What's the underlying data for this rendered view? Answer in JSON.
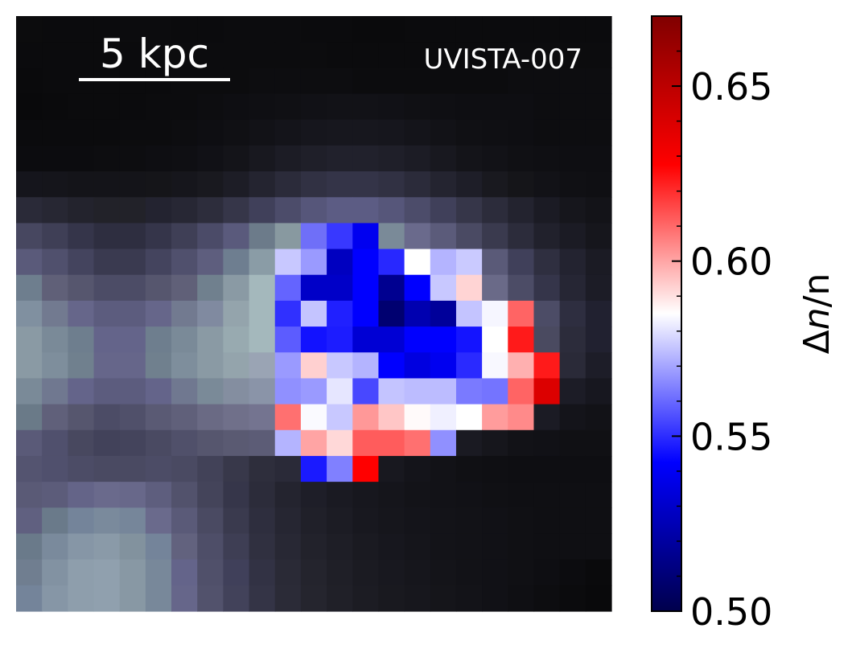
{
  "chart_data": {
    "type": "heatmap",
    "title": "",
    "object_id": "UVISTA-007",
    "scale_bar": {
      "label": "5 kpc"
    },
    "colorbar": {
      "label_symbol": "Δ",
      "label_var": "n",
      "label_den": "/n",
      "colormap": "seismic",
      "vmin": 0.5,
      "vmax": 0.67,
      "ticks": [
        {
          "value": 0.5,
          "label": "0.50"
        },
        {
          "value": 0.55,
          "label": "0.55"
        },
        {
          "value": 0.6,
          "label": "0.60"
        },
        {
          "value": 0.65,
          "label": "0.65"
        }
      ],
      "minor_step": 0.01
    },
    "background_grid": {
      "description_colors": "grayscale-blue stellar image",
      "rows": [
        [
          "#0c0c0d",
          "#0b0b0d",
          "#0b0b0d",
          "#0b0b0d",
          "#0c0c0e",
          "#0c0c0e",
          "#0b0b0d",
          "#0b0b0d",
          "#0c0c0e",
          "#0c0c0e",
          "#0c0c0e",
          "#0b0b0d",
          "#0b0b0d",
          "#0a0a0c",
          "#0a0a0c",
          "#0b0b0d",
          "#0b0b0d",
          "#0b0b0d",
          "#0b0b0d",
          "#0b0b0d",
          "#0b0b0d",
          "#0b0b0d",
          "#0b0b0d"
        ],
        [
          "#0b0b0d",
          "#0b0b0d",
          "#0b0b0d",
          "#0b0b0d",
          "#0b0b0d",
          "#0c0c0e",
          "#0c0c0e",
          "#0c0c0e",
          "#0c0c0e",
          "#0c0c0e",
          "#0c0c0e",
          "#0c0c0e",
          "#0b0b0d",
          "#0b0b0d",
          "#0b0b0d",
          "#0b0b0d",
          "#0b0b0d",
          "#0b0b0d",
          "#0b0b0d",
          "#0c0c0e",
          "#0c0c0e",
          "#0c0c0e",
          "#0c0c0e"
        ],
        [
          "#0a0a0c",
          "#0b0b0d",
          "#0b0b0d",
          "#0b0b0d",
          "#0b0b0d",
          "#0b0b0d",
          "#0c0c0e",
          "#0c0c0e",
          "#0c0c0e",
          "#0d0d10",
          "#0d0d10",
          "#0d0d10",
          "#0d0d10",
          "#0c0c0e",
          "#0c0c0e",
          "#0c0c0e",
          "#0c0c0e",
          "#0c0c0e",
          "#0c0c0e",
          "#0d0d10",
          "#0d0d10",
          "#0d0d10",
          "#0d0d10"
        ],
        [
          "#09090b",
          "#0a0a0c",
          "#0b0b0d",
          "#0b0b0d",
          "#0b0b0d",
          "#0c0c0e",
          "#0c0c0e",
          "#0d0d10",
          "#0e0e12",
          "#0f0f13",
          "#101014",
          "#111116",
          "#121217",
          "#121217",
          "#111116",
          "#101014",
          "#0f0f13",
          "#0e0e12",
          "#0e0e12",
          "#0e0e12",
          "#0d0d10",
          "#0d0d10",
          "#0d0d10"
        ],
        [
          "#0b0b0d",
          "#0b0b0d",
          "#0b0b0d",
          "#0b0b0d",
          "#0c0c0e",
          "#0c0c0e",
          "#0d0d10",
          "#0e0e12",
          "#101014",
          "#121217",
          "#14141a",
          "#16161d",
          "#17171e",
          "#17171e",
          "#16161d",
          "#14141a",
          "#121217",
          "#101014",
          "#0f0f13",
          "#0e0e12",
          "#0d0d10",
          "#0d0d10",
          "#0d0d10"
        ],
        [
          "#0c0c0f",
          "#0c0c0f",
          "#0c0c0f",
          "#0d0d10",
          "#0d0d10",
          "#0e0e12",
          "#0f0f13",
          "#111116",
          "#141419",
          "#18181f",
          "#1c1c25",
          "#1f1f29",
          "#21212c",
          "#21212c",
          "#1f1f29",
          "#1c1c25",
          "#18181f",
          "#141419",
          "#121217",
          "#101014",
          "#0f0f13",
          "#0e0e12",
          "#0e0e12"
        ],
        [
          "#15151c",
          "#15151b",
          "#141419",
          "#141419",
          "#141419",
          "#151519",
          "#16161c",
          "#19191f",
          "#1d1d26",
          "#242430",
          "#2b2b3a",
          "#313143",
          "#343448",
          "#343448",
          "#313143",
          "#2b2b3a",
          "#242430",
          "#1e1e28",
          "#19191f",
          "#151519",
          "#121217",
          "#101014",
          "#0f0f13"
        ],
        [
          "#2a2a38",
          "#272733",
          "#23232d",
          "#222229",
          "#222229",
          "#232330",
          "#272734",
          "#2d2d3c",
          "#363649",
          "#40405a",
          "#4c4c6a",
          "#56567a",
          "#5c5c84",
          "#5c5c84",
          "#56567a",
          "#4c4c6a",
          "#40405a",
          "#363649",
          "#2c2c3b",
          "#23232f",
          "#1b1b24",
          "#16161c",
          "#131318"
        ],
        [
          "#474760",
          "#3f3f56",
          "#35354a",
          "#2e2e40",
          "#2e2e40",
          "#35354a",
          "#3f3f56",
          "#4b4b68",
          "#5a5a7c",
          "#6c7b8a",
          "#8899a0",
          "#6f6ff8",
          "#3838ff",
          "#0000f0",
          "#7a8a98",
          "#6a6a8c",
          "#5b5b7a",
          "#4a4a63",
          "#3a3a4e",
          "#2c2c3b",
          "#21212c",
          "#1b1b24",
          "#16161c"
        ],
        [
          "#5a5a7a",
          "#50506d",
          "#44445e",
          "#3a3a50",
          "#3a3a50",
          "#44445e",
          "#50506d",
          "#5e5e7e",
          "#6e7e90",
          "#8a9ca6",
          "#c8c8ff",
          "#9a9aff",
          "#0000c0",
          "#0000ff",
          "#2828ff",
          "#ffffff",
          "#b4b4ff",
          "#cacaff",
          "#5a5a78",
          "#40405a",
          "#2f2f40",
          "#232330",
          "#1b1b24"
        ],
        [
          "#6e7e8e",
          "#606078",
          "#56566e",
          "#4c4c66",
          "#4c4c66",
          "#56566e",
          "#606078",
          "#70808e",
          "#8a9aa4",
          "#a4b8bc",
          "#6464ff",
          "#0000c8",
          "#0000c8",
          "#0000ff",
          "#000090",
          "#0000ff",
          "#c8c8ff",
          "#ffd4d4",
          "#6a6a88",
          "#4c4c66",
          "#35354a",
          "#262634",
          "#1c1c26"
        ],
        [
          "#8090a0",
          "#727a90",
          "#66668a",
          "#5c5c7e",
          "#5c5c7e",
          "#66668a",
          "#727a90",
          "#808aa0",
          "#94a4ac",
          "#a4b8bc",
          "#3030ff",
          "#c4c4ff",
          "#2020ff",
          "#0000ff",
          "#000070",
          "#0000b0",
          "#00009a",
          "#c4c4ff",
          "#f6f6ff",
          "#ff6464",
          "#4c4c66",
          "#2e2e40",
          "#212130"
        ],
        [
          "#8a9aa4",
          "#7a8a98",
          "#6e7e8e",
          "#64648a",
          "#64648a",
          "#6e7e8e",
          "#7a8a98",
          "#8a9aa4",
          "#98aab0",
          "#a4b8bc",
          "#5c5cff",
          "#1212ff",
          "#1c1cff",
          "#0000d4",
          "#0000d4",
          "#0000ff",
          "#0000ff",
          "#1414ff",
          "#ffffff",
          "#ff1a1a",
          "#4a4a60",
          "#2c2c3b",
          "#212130"
        ],
        [
          "#8a9aa4",
          "#7e8e9c",
          "#70808e",
          "#66668a",
          "#66668a",
          "#70808e",
          "#7e8e9c",
          "#8a9aa4",
          "#94a4ac",
          "#9aa4b4",
          "#9a9aff",
          "#ffd0d0",
          "#c8c8ff",
          "#b4b4ff",
          "#0000ff",
          "#0000e0",
          "#0000f0",
          "#2a2aff",
          "#f8f8ff",
          "#ffb0b0",
          "#ff1a1a",
          "#2a2a38",
          "#1d1d28"
        ],
        [
          "#7a8a98",
          "#707890",
          "#64648a",
          "#5c5c7e",
          "#5c5c7e",
          "#64648a",
          "#707890",
          "#7a8a98",
          "#848ea0",
          "#8a94a8",
          "#9090ff",
          "#9a9aff",
          "#e6e6ff",
          "#4848ff",
          "#c4c4ff",
          "#bcbcff",
          "#bcbcff",
          "#7a7aff",
          "#7474ff",
          "#ff6464",
          "#dc0000",
          "#1c1c26",
          "#17171f"
        ],
        [
          "#6a7a88",
          "#60607a",
          "#56566e",
          "#4c4c66",
          "#50506a",
          "#5a5a74",
          "#60607a",
          "#6a6a84",
          "#70708a",
          "#747490",
          "#ff7070",
          "#fafaff",
          "#c8c8ff",
          "#ff9898",
          "#ffc6c6",
          "#fffafa",
          "#f0f0ff",
          "#ffffff",
          "#ff9c9c",
          "#ff8a8a",
          "#1b1b24",
          "#14141a",
          "#121217"
        ],
        [
          "#5a5a78",
          "#50506d",
          "#48485f",
          "#42425a",
          "#44445c",
          "#4a4a62",
          "#50506a",
          "#56566e",
          "#5a5a72",
          "#5c5c76",
          "#b4b4ff",
          "#ffa4a4",
          "#ffd8d8",
          "#ff5c5c",
          "#ff5c5c",
          "#ff7070",
          "#9090ff",
          "#1a1a22",
          "#16161c",
          "#121217",
          "#111116",
          "#101014",
          "#101014"
        ],
        [
          "#545470",
          "#50506d",
          "#4c4c66",
          "#4a4a62",
          "#4a4a62",
          "#4c4c66",
          "#4a4a62",
          "#424258",
          "#38384a",
          "#2e2e3c",
          "#2a2a38",
          "#1a1aff",
          "#8080ff",
          "#ff0000",
          "#18181f",
          "#14141a",
          "#121217",
          "#101014",
          "#0f0f13",
          "#0e0e12",
          "#0e0e12",
          "#0e0e12",
          "#0e0e12"
        ],
        [
          "#5a5a76",
          "#5c5c7a",
          "#646488",
          "#6a6a8c",
          "#68688a",
          "#5e5e7e",
          "#52526c",
          "#44445a",
          "#36364a",
          "#2c2c3a",
          "#24242f",
          "#1e1e28",
          "#1a1a22",
          "#17171e",
          "#15151b",
          "#131318",
          "#121217",
          "#111116",
          "#101014",
          "#0f0f13",
          "#0f0f13",
          "#0f0f13",
          "#0f0f13"
        ],
        [
          "#606080",
          "#6a7a8a",
          "#74849a",
          "#7a8a9c",
          "#76869a",
          "#6a6a8c",
          "#5a5a78",
          "#4a4a62",
          "#3a3a4e",
          "#2e2e3e",
          "#262632",
          "#202029",
          "#1c1c24",
          "#18181f",
          "#16161c",
          "#14141a",
          "#131318",
          "#121217",
          "#111116",
          "#101014",
          "#0f0f13",
          "#0f0f13",
          "#0f0f13"
        ],
        [
          "#6a7a8a",
          "#7a8a9c",
          "#8696a6",
          "#8a9aa8",
          "#82929e",
          "#74849a",
          "#62627e",
          "#4e4e68",
          "#3e3e54",
          "#303040",
          "#282834",
          "#22222b",
          "#1e1e26",
          "#1a1a21",
          "#17171e",
          "#15151b",
          "#131318",
          "#121217",
          "#111116",
          "#101014",
          "#0f0f13",
          "#0f0f13",
          "#0f0f13"
        ],
        [
          "#707e90",
          "#8292a2",
          "#8e9eac",
          "#90a0ae",
          "#8898a4",
          "#78889a",
          "#64648a",
          "#50506a",
          "#40405a",
          "#323244",
          "#2a2a36",
          "#24242d",
          "#1f1f27",
          "#1b1b22",
          "#18181f",
          "#16161c",
          "#141419",
          "#121217",
          "#111116",
          "#101014",
          "#0e0e12",
          "#0c0c0f",
          "#0a0a0c"
        ],
        [
          "#74849a",
          "#8696a6",
          "#8e9eac",
          "#90a0ae",
          "#8898a4",
          "#78889a",
          "#66668a",
          "#52526c",
          "#42425a",
          "#343446",
          "#2b2b37",
          "#25252e",
          "#202028",
          "#1c1c23",
          "#19191f",
          "#17171d",
          "#15151a",
          "#131318",
          "#111116",
          "#0f0f13",
          "#0d0d10",
          "#0b0b0d",
          "#09090b"
        ]
      ]
    }
  }
}
